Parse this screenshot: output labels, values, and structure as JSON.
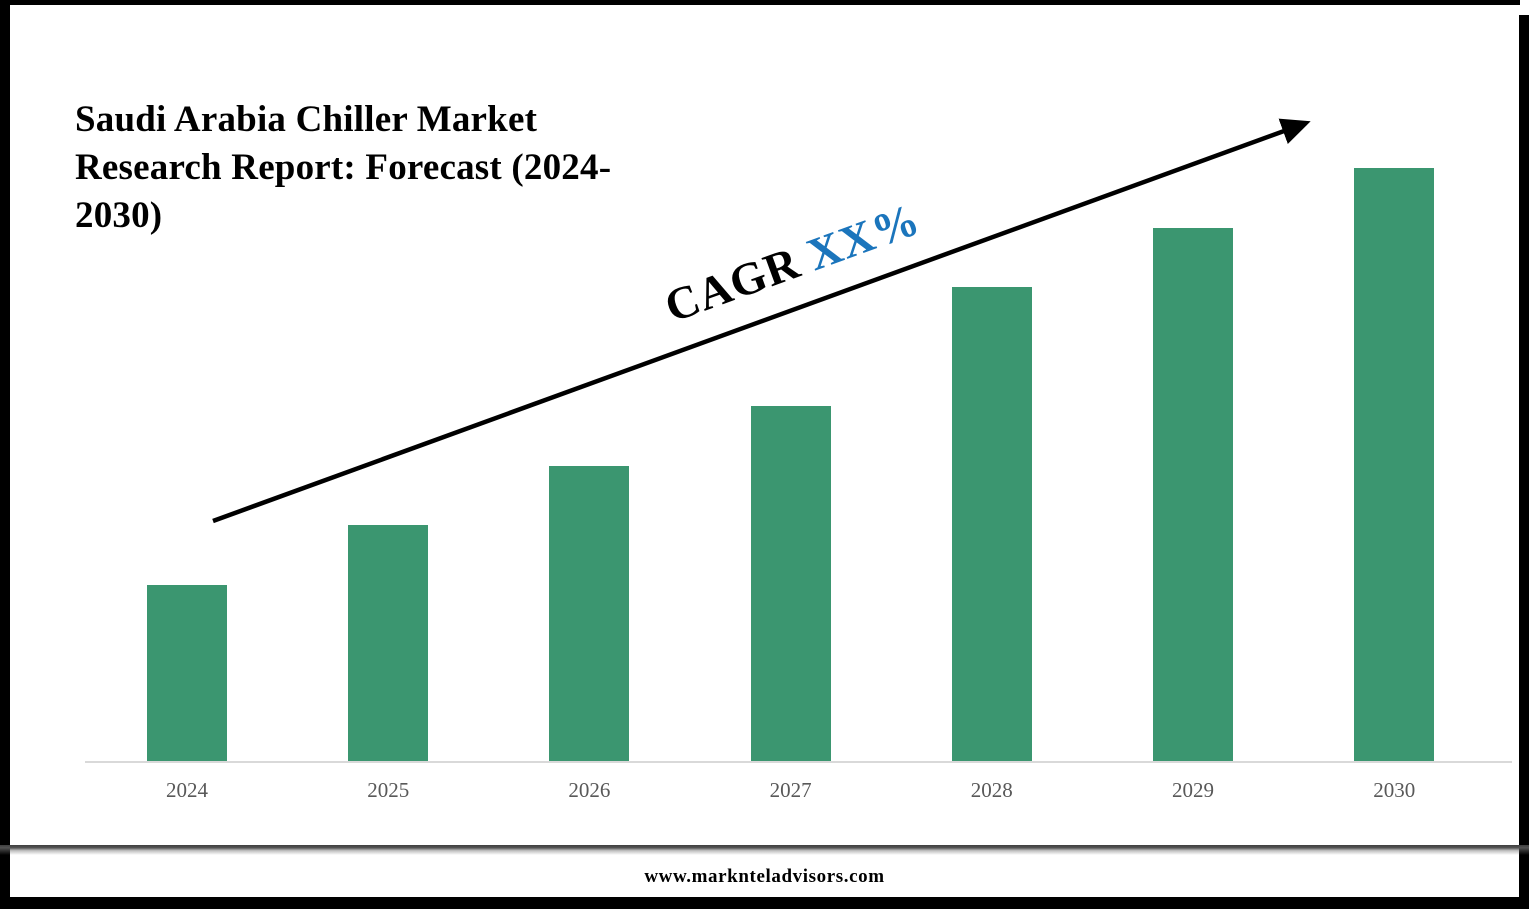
{
  "title": {
    "text": "Saudi Arabia Chiller Market Research Report: Forecast (2024-2030)",
    "lines": [
      "Saudi Arabia Chiller Market",
      "Research Report: Forecast (2024-",
      "2030)"
    ]
  },
  "annotation": {
    "prefix": "CAGR",
    "highlight": "XX%",
    "highlight_color": "#1b75bc",
    "arrow_color": "#000000"
  },
  "chart_data": {
    "type": "bar",
    "title": "Saudi Arabia Chiller Market Research Report: Forecast (2024-2030)",
    "categories": [
      "2024",
      "2025",
      "2026",
      "2027",
      "2028",
      "2029",
      "2030"
    ],
    "values": [
      30,
      40,
      50,
      60,
      80,
      90,
      100
    ],
    "values_note": "actual figures masked on chart; heights are relative (CAGR XX%)",
    "xlabel": "",
    "ylabel": "",
    "ylim": [
      0,
      100
    ],
    "grid": false,
    "legend": false,
    "bar_color": "#3b9670",
    "axis_line_color": "#d9d9d9",
    "tick_label_color": "#595959",
    "annotation": "CAGR XX%",
    "trend_arrow": true
  },
  "footer": {
    "url": "www.marknteladvisors.com"
  }
}
